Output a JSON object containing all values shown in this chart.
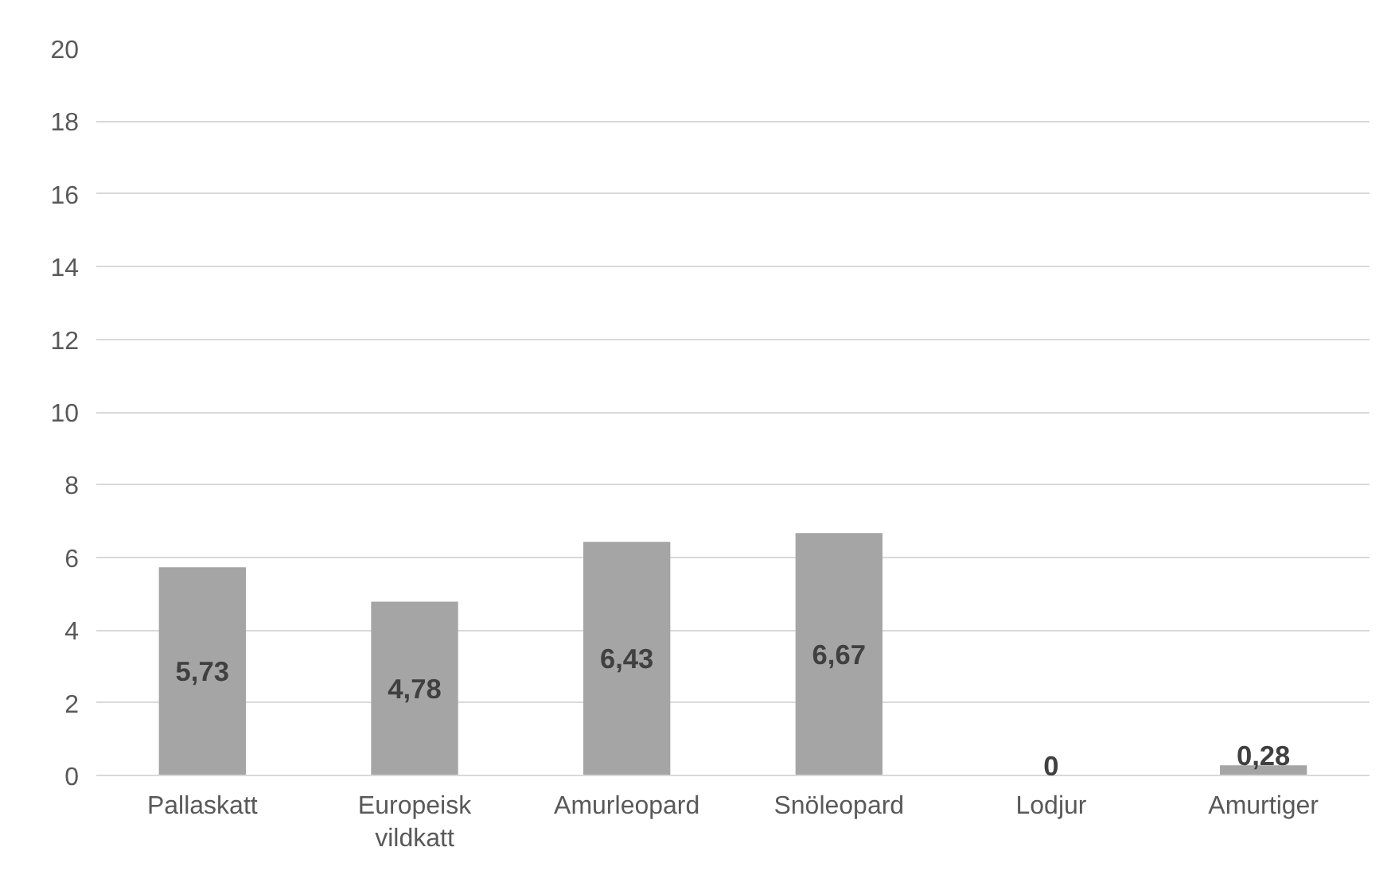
{
  "chart_data": {
    "type": "bar",
    "categories": [
      "Pallaskatt",
      "Europeisk vildkatt",
      "Amurleopard",
      "Snöleopard",
      "Lodjur",
      "Amurtiger"
    ],
    "values": [
      5.73,
      4.78,
      6.43,
      6.67,
      0,
      0.28
    ],
    "value_labels": [
      "5,73",
      "4,78",
      "6,43",
      "6,67",
      "0",
      "0,28"
    ],
    "color": "#a5a5a5",
    "ylim": [
      0,
      20
    ],
    "yticks": [
      0,
      2,
      4,
      6,
      8,
      10,
      12,
      14,
      16,
      18,
      20
    ],
    "grid": "y"
  }
}
